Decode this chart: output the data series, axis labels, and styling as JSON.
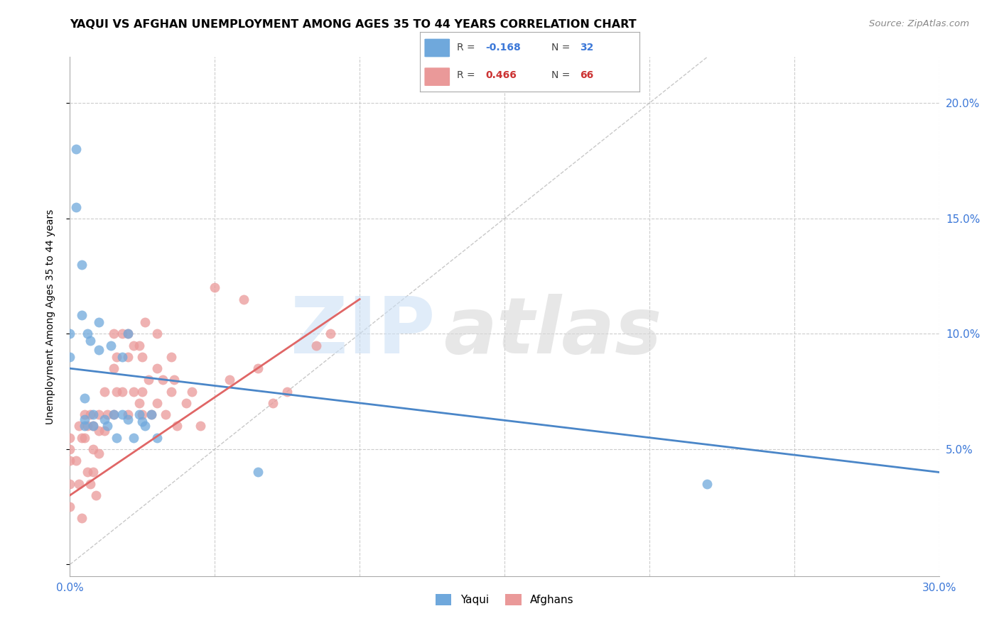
{
  "title": "YAQUI VS AFGHAN UNEMPLOYMENT AMONG AGES 35 TO 44 YEARS CORRELATION CHART",
  "source": "Source: ZipAtlas.com",
  "ylabel": "Unemployment Among Ages 35 to 44 years",
  "xlim": [
    0.0,
    0.3
  ],
  "ylim": [
    -0.005,
    0.22
  ],
  "y_ticks": [
    0.0,
    0.05,
    0.1,
    0.15,
    0.2
  ],
  "y_tick_labels_right": [
    "",
    "5.0%",
    "10.0%",
    "15.0%",
    "20.0%"
  ],
  "yaqui_color": "#6fa8dc",
  "afghan_color": "#ea9999",
  "yaqui_line_color": "#4a86c8",
  "afghan_line_color": "#e06666",
  "diagonal_line_color": "#cccccc",
  "yaqui_line_x0": 0.0,
  "yaqui_line_y0": 0.085,
  "yaqui_line_x1": 0.3,
  "yaqui_line_y1": 0.04,
  "afghan_line_x0": 0.0,
  "afghan_line_y0": 0.03,
  "afghan_line_x1": 0.1,
  "afghan_line_y1": 0.115,
  "yaqui_x": [
    0.0,
    0.0,
    0.002,
    0.002,
    0.004,
    0.004,
    0.005,
    0.005,
    0.005,
    0.006,
    0.007,
    0.008,
    0.008,
    0.01,
    0.01,
    0.012,
    0.013,
    0.014,
    0.015,
    0.016,
    0.018,
    0.018,
    0.02,
    0.02,
    0.022,
    0.024,
    0.025,
    0.026,
    0.028,
    0.03,
    0.065,
    0.22
  ],
  "yaqui_y": [
    0.09,
    0.1,
    0.18,
    0.155,
    0.13,
    0.108,
    0.06,
    0.063,
    0.072,
    0.1,
    0.097,
    0.065,
    0.06,
    0.105,
    0.093,
    0.063,
    0.06,
    0.095,
    0.065,
    0.055,
    0.09,
    0.065,
    0.1,
    0.063,
    0.055,
    0.065,
    0.062,
    0.06,
    0.065,
    0.055,
    0.04,
    0.035
  ],
  "afghan_x": [
    0.0,
    0.0,
    0.0,
    0.0,
    0.0,
    0.002,
    0.003,
    0.003,
    0.004,
    0.004,
    0.005,
    0.005,
    0.006,
    0.006,
    0.007,
    0.007,
    0.008,
    0.008,
    0.008,
    0.009,
    0.01,
    0.01,
    0.01,
    0.012,
    0.012,
    0.013,
    0.015,
    0.015,
    0.015,
    0.016,
    0.016,
    0.018,
    0.018,
    0.02,
    0.02,
    0.02,
    0.022,
    0.022,
    0.024,
    0.024,
    0.025,
    0.025,
    0.025,
    0.026,
    0.027,
    0.028,
    0.03,
    0.03,
    0.03,
    0.032,
    0.033,
    0.035,
    0.035,
    0.036,
    0.037,
    0.04,
    0.042,
    0.045,
    0.05,
    0.055,
    0.06,
    0.065,
    0.07,
    0.075,
    0.085,
    0.09
  ],
  "afghan_y": [
    0.055,
    0.05,
    0.045,
    0.035,
    0.025,
    0.045,
    0.06,
    0.035,
    0.055,
    0.02,
    0.065,
    0.055,
    0.06,
    0.04,
    0.065,
    0.035,
    0.05,
    0.06,
    0.04,
    0.03,
    0.065,
    0.058,
    0.048,
    0.075,
    0.058,
    0.065,
    0.1,
    0.085,
    0.065,
    0.09,
    0.075,
    0.1,
    0.075,
    0.1,
    0.09,
    0.065,
    0.095,
    0.075,
    0.095,
    0.07,
    0.09,
    0.075,
    0.065,
    0.105,
    0.08,
    0.065,
    0.1,
    0.085,
    0.07,
    0.08,
    0.065,
    0.09,
    0.075,
    0.08,
    0.06,
    0.07,
    0.075,
    0.06,
    0.12,
    0.08,
    0.115,
    0.085,
    0.07,
    0.075,
    0.095,
    0.1
  ]
}
